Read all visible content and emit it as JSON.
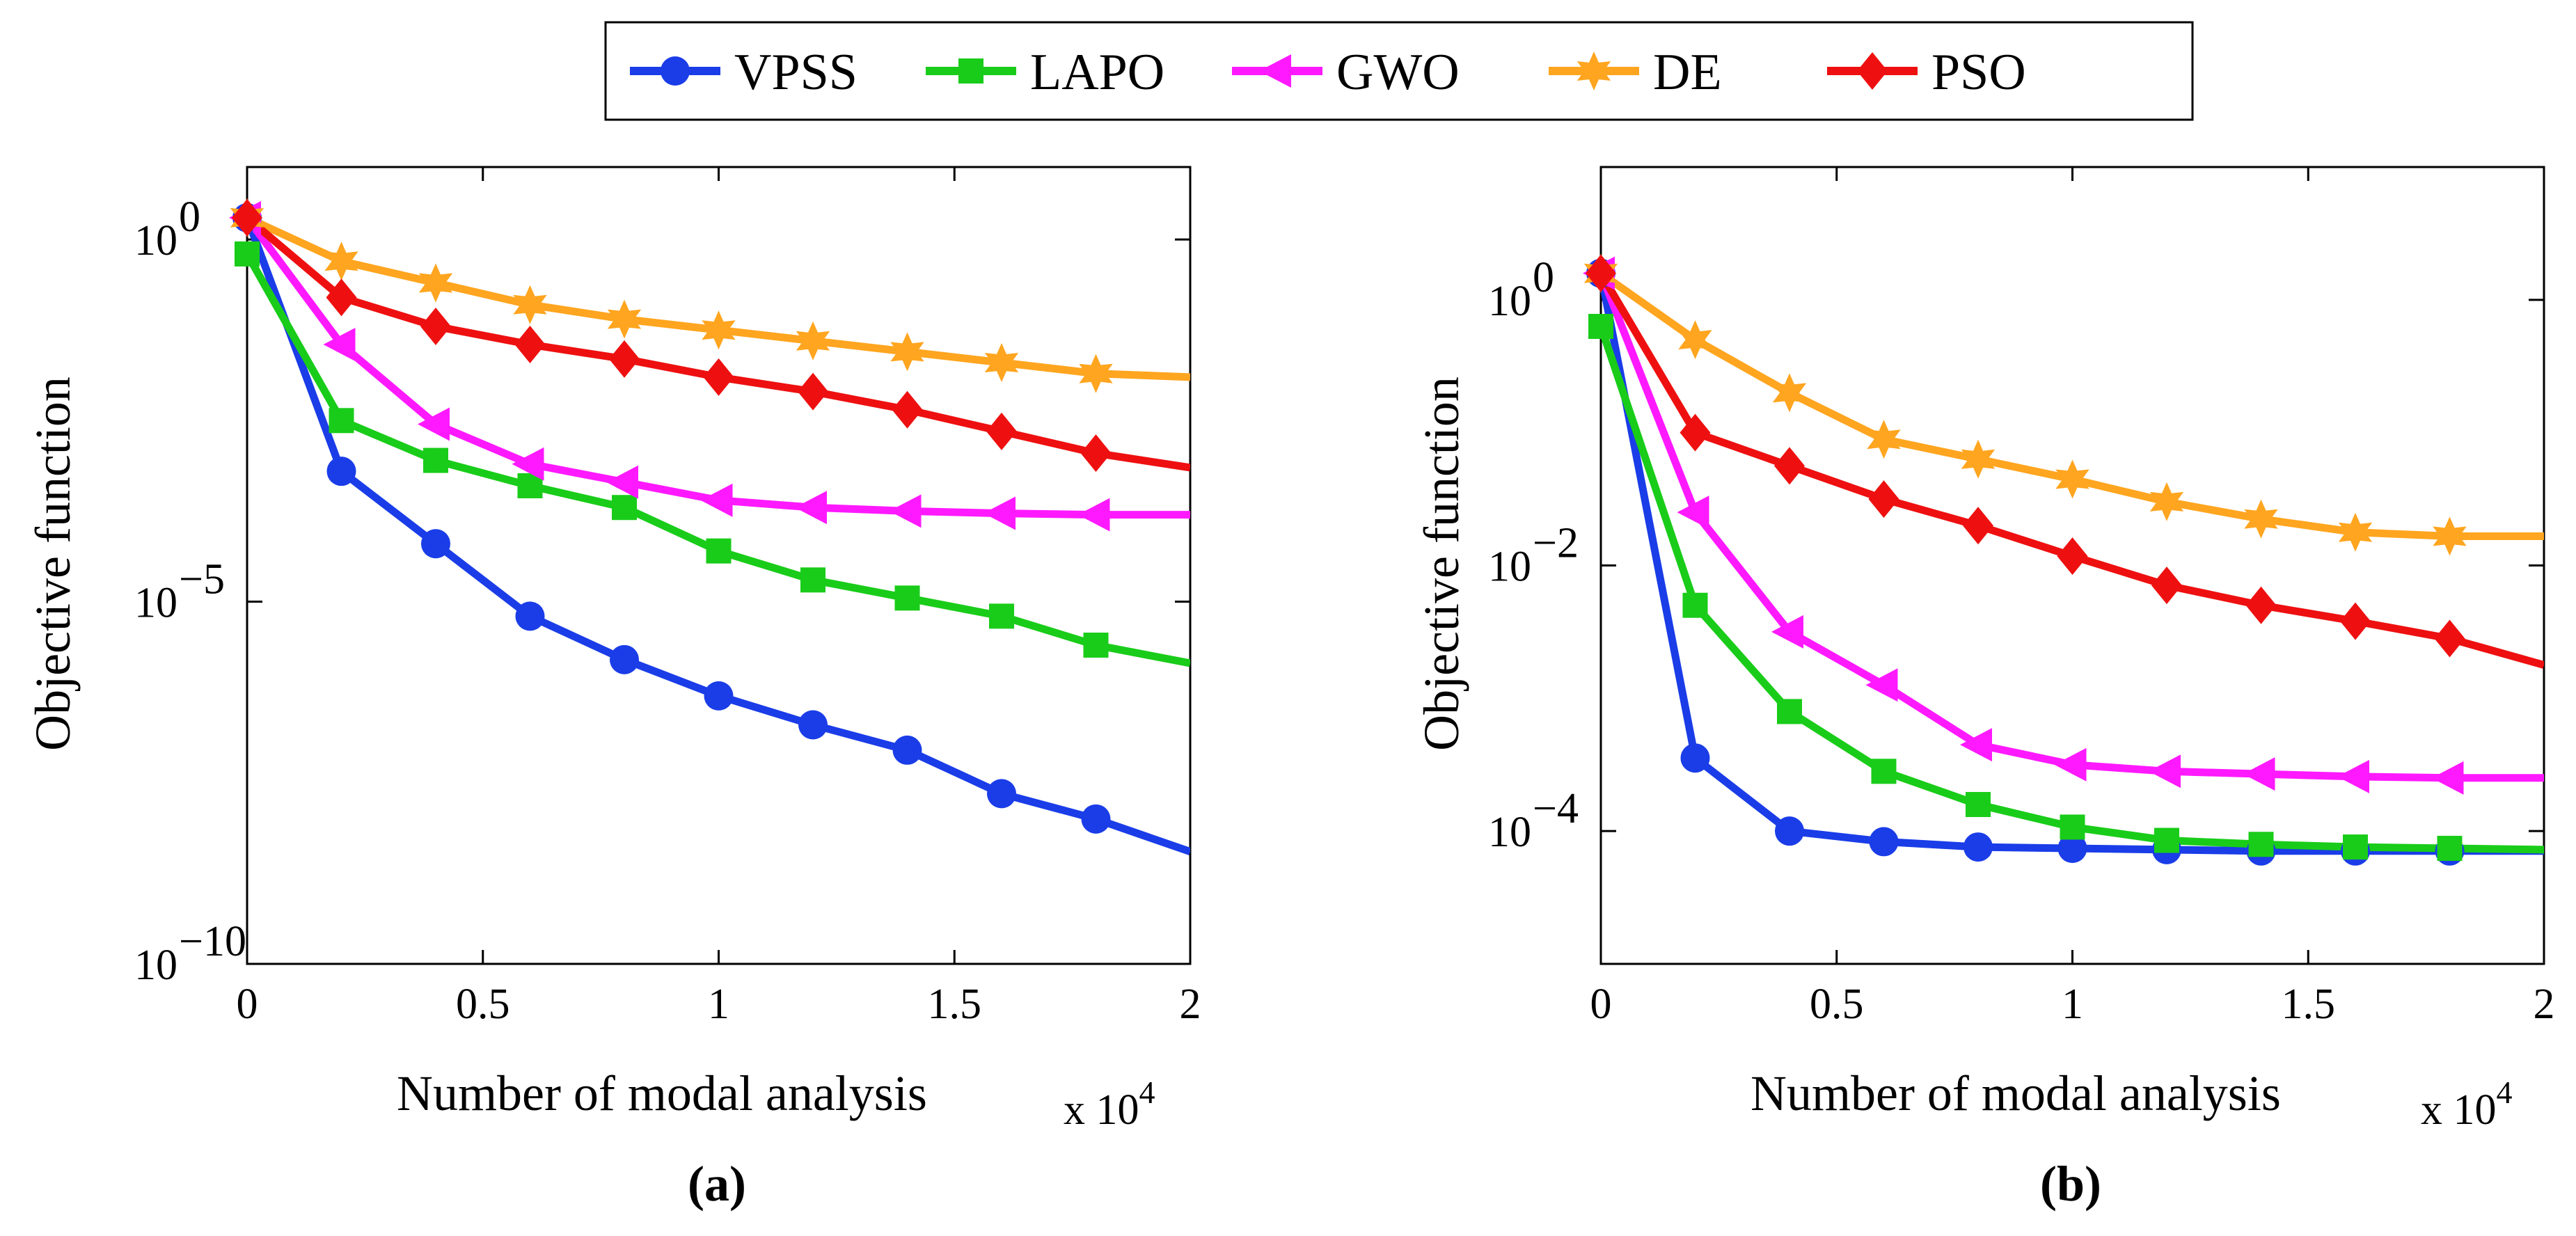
{
  "colors": {
    "VPSS": "#1a3de8",
    "LAPO": "#19cc19",
    "GWO": "#ff19ff",
    "DE": "#ffa51f",
    "PSO": "#ee1010"
  },
  "legend": {
    "entries": [
      {
        "name": "VPSS",
        "marker": "circle"
      },
      {
        "name": "LAPO",
        "marker": "square"
      },
      {
        "name": "GWO",
        "marker": "triangle-left"
      },
      {
        "name": "DE",
        "marker": "hexagram"
      },
      {
        "name": "PSO",
        "marker": "diamond"
      }
    ]
  },
  "chart_data": [
    {
      "id": "a",
      "type": "line",
      "yscale": "log",
      "title": "(a)",
      "xlabel": "Number of modal analysis",
      "x_multiplier": "x 10",
      "x_multiplier_exp": "4",
      "ylabel": "Objective function",
      "xlim": [
        0,
        2
      ],
      "ylim_log10": [
        -10,
        1
      ],
      "x_ticks": [
        "0",
        "0.5",
        "1",
        "1.5",
        "2"
      ],
      "y_ticks": [
        {
          "base": "10",
          "exp": "0",
          "log10": 0
        },
        {
          "base": "10",
          "exp": "−5",
          "log10": -5
        },
        {
          "base": "10",
          "exp": "−10",
          "log10": -10
        }
      ],
      "x": [
        0,
        0.2,
        0.4,
        0.6,
        0.8,
        1.0,
        1.2,
        1.4,
        1.6,
        1.8,
        2.0
      ],
      "series": [
        {
          "name": "VPSS",
          "log10_values": [
            0.3,
            -3.2,
            -4.2,
            -5.2,
            -5.8,
            -6.3,
            -6.7,
            -7.05,
            -7.65,
            -8.0,
            -8.45
          ],
          "markers_to": 1.8
        },
        {
          "name": "LAPO",
          "log10_values": [
            -0.2,
            -2.5,
            -3.05,
            -3.4,
            -3.7,
            -4.3,
            -4.7,
            -4.95,
            -5.2,
            -5.6,
            -5.85
          ],
          "markers_to": 1.8
        },
        {
          "name": "GWO",
          "log10_values": [
            0.3,
            -1.45,
            -2.55,
            -3.1,
            -3.35,
            -3.6,
            -3.7,
            -3.75,
            -3.78,
            -3.8,
            -3.8
          ],
          "markers_to": 1.8
        },
        {
          "name": "DE",
          "log10_values": [
            0.3,
            -0.3,
            -0.6,
            -0.9,
            -1.1,
            -1.25,
            -1.4,
            -1.55,
            -1.7,
            -1.85,
            -1.9
          ],
          "markers_to": 1.8
        },
        {
          "name": "PSO",
          "log10_values": [
            0.3,
            -0.8,
            -1.2,
            -1.45,
            -1.65,
            -1.9,
            -2.1,
            -2.35,
            -2.65,
            -2.95,
            -3.15
          ],
          "markers_to": 1.8
        }
      ]
    },
    {
      "id": "b",
      "type": "line",
      "yscale": "log",
      "title": "(b)",
      "xlabel": "Number of modal analysis",
      "x_multiplier": "x 10",
      "x_multiplier_exp": "4",
      "ylabel": "Objective function",
      "xlim": [
        0,
        2
      ],
      "ylim_log10": [
        -5,
        1
      ],
      "x_ticks": [
        "0",
        "0.5",
        "1",
        "1.5",
        "2"
      ],
      "y_ticks": [
        {
          "base": "10",
          "exp": "0",
          "log10": 0
        },
        {
          "base": "10",
          "exp": "−2",
          "log10": -2
        },
        {
          "base": "10",
          "exp": "−4",
          "log10": -4
        }
      ],
      "x": [
        0,
        0.2,
        0.4,
        0.6,
        0.8,
        1.0,
        1.2,
        1.4,
        1.6,
        1.8,
        2.0
      ],
      "series": [
        {
          "name": "VPSS",
          "log10_values": [
            0.2,
            -3.45,
            -4.0,
            -4.08,
            -4.12,
            -4.13,
            -4.14,
            -4.15,
            -4.15,
            -4.15,
            -4.15
          ],
          "markers_to": 1.8
        },
        {
          "name": "LAPO",
          "log10_values": [
            -0.2,
            -2.3,
            -3.1,
            -3.55,
            -3.8,
            -3.97,
            -4.07,
            -4.1,
            -4.12,
            -4.13,
            -4.14
          ],
          "markers_to": 1.8
        },
        {
          "name": "GWO",
          "log10_values": [
            0.2,
            -1.6,
            -2.5,
            -2.9,
            -3.35,
            -3.5,
            -3.55,
            -3.57,
            -3.59,
            -3.6,
            -3.6
          ],
          "markers_to": 1.8
        },
        {
          "name": "DE",
          "log10_values": [
            0.2,
            -0.3,
            -0.7,
            -1.05,
            -1.2,
            -1.35,
            -1.52,
            -1.65,
            -1.75,
            -1.78,
            -1.78
          ],
          "markers_to": 1.8
        },
        {
          "name": "PSO",
          "log10_values": [
            0.2,
            -1.0,
            -1.25,
            -1.5,
            -1.7,
            -1.93,
            -2.15,
            -2.3,
            -2.42,
            -2.55,
            -2.75
          ],
          "markers_to": 1.8
        }
      ]
    }
  ]
}
